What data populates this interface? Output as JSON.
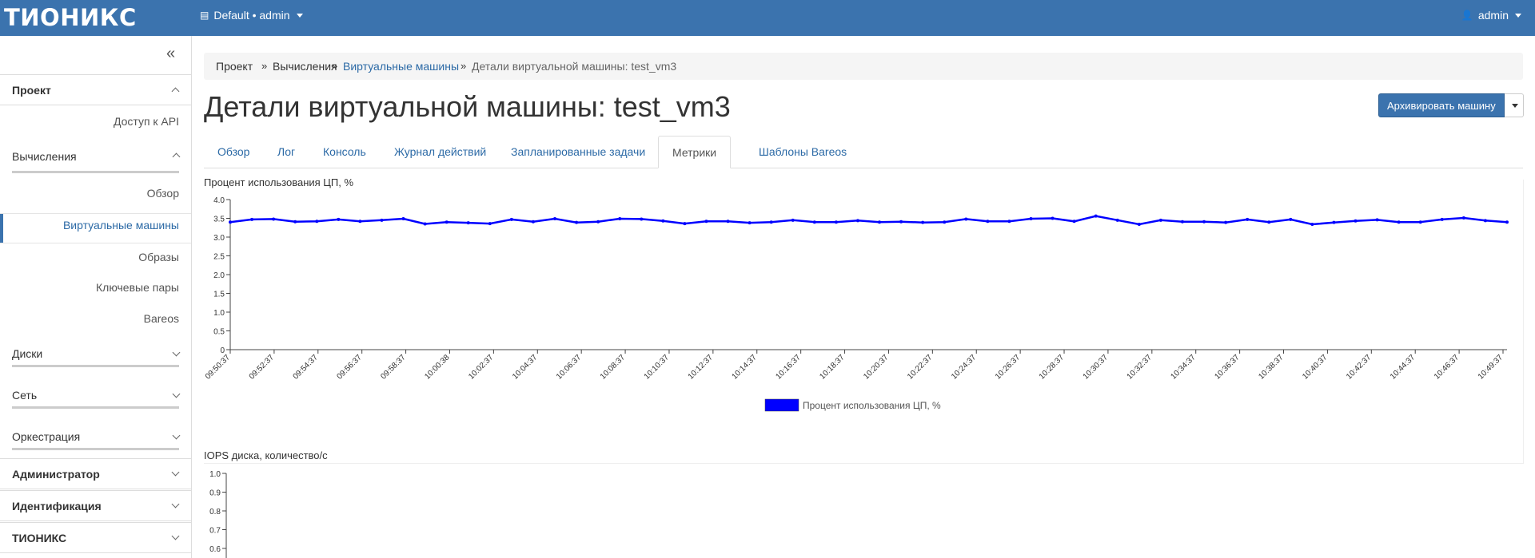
{
  "header": {
    "logo": "ТИОНИКС",
    "project_selector": "Default • admin",
    "user": "admin"
  },
  "sidebar": {
    "sections": {
      "project": "Проект",
      "admin": "Администратор",
      "identity": "Идентификация",
      "tionix": "ТИОНИКС"
    },
    "api_access": "Доступ к API",
    "compute": "Вычисления",
    "compute_items": {
      "overview": "Обзор",
      "instances": "Виртуальные машины",
      "images": "Образы",
      "keypairs": "Ключевые пары",
      "bareos": "Bareos"
    },
    "groups": {
      "volumes": "Диски",
      "network": "Сеть",
      "orchestration": "Оркестрация"
    }
  },
  "breadcrumb": {
    "project": "Проект",
    "compute": "Вычисления",
    "instances": "Виртуальные машины",
    "current": "Детали виртуальной машины: test_vm3"
  },
  "page": {
    "title": "Детали виртуальной машины: test_vm3",
    "archive_button": "Архивировать машину"
  },
  "tabs": {
    "overview": "Обзор",
    "log": "Лог",
    "console": "Консоль",
    "actions": "Журнал действий",
    "scheduled": "Запланированные задачи",
    "metrics": "Метрики",
    "bareos": "Шаблоны Bareos"
  },
  "colors": {
    "accent": "#3b73ae",
    "link": "#2c6aa6",
    "series": "#0000ff"
  },
  "chart_data": [
    {
      "type": "line",
      "title": "Процент использования ЦП, %",
      "legend": "Процент использования ЦП, %",
      "legend_position": "bottom-center",
      "ylim": [
        0,
        4.0
      ],
      "yticks": [
        "0",
        "0.5",
        "1.0",
        "1.5",
        "2.0",
        "2.5",
        "3.0",
        "3.5",
        "4.0"
      ],
      "xticks": [
        "09:50:37",
        "09:52:37",
        "09:54:37",
        "09:56:37",
        "09:58:37",
        "10:00:38",
        "10:02:37",
        "10:04:37",
        "10:06:37",
        "10:08:37",
        "10:10:37",
        "10:12:37",
        "10:14:37",
        "10:16:37",
        "10:18:37",
        "10:20:37",
        "10:22:37",
        "10:24:37",
        "10:26:37",
        "10:28:37",
        "10:30:37",
        "10:32:37",
        "10:34:37",
        "10:36:37",
        "10:38:37",
        "10:40:37",
        "10:42:37",
        "10:44:37",
        "10:46:37",
        "10:49:37"
      ],
      "series": [
        {
          "name": "Процент использования ЦП, %",
          "values": [
            3.4,
            3.47,
            3.48,
            3.41,
            3.42,
            3.47,
            3.42,
            3.45,
            3.49,
            3.35,
            3.4,
            3.38,
            3.36,
            3.47,
            3.41,
            3.49,
            3.39,
            3.41,
            3.49,
            3.48,
            3.43,
            3.36,
            3.42,
            3.42,
            3.38,
            3.4,
            3.45,
            3.4,
            3.4,
            3.44,
            3.4,
            3.41,
            3.39,
            3.4,
            3.48,
            3.42,
            3.42,
            3.49,
            3.5,
            3.42,
            3.56,
            3.45,
            3.34,
            3.45,
            3.41,
            3.41,
            3.39,
            3.47,
            3.4,
            3.47,
            3.34,
            3.39,
            3.43,
            3.46,
            3.4,
            3.4,
            3.47,
            3.51,
            3.44,
            3.4
          ]
        }
      ]
    },
    {
      "type": "line",
      "title": "IOPS диска, количество/с",
      "ylim": [
        0,
        1.0
      ],
      "yticks": [
        "0.6",
        "0.7",
        "0.8",
        "0.9",
        "1.0"
      ],
      "series": []
    }
  ]
}
